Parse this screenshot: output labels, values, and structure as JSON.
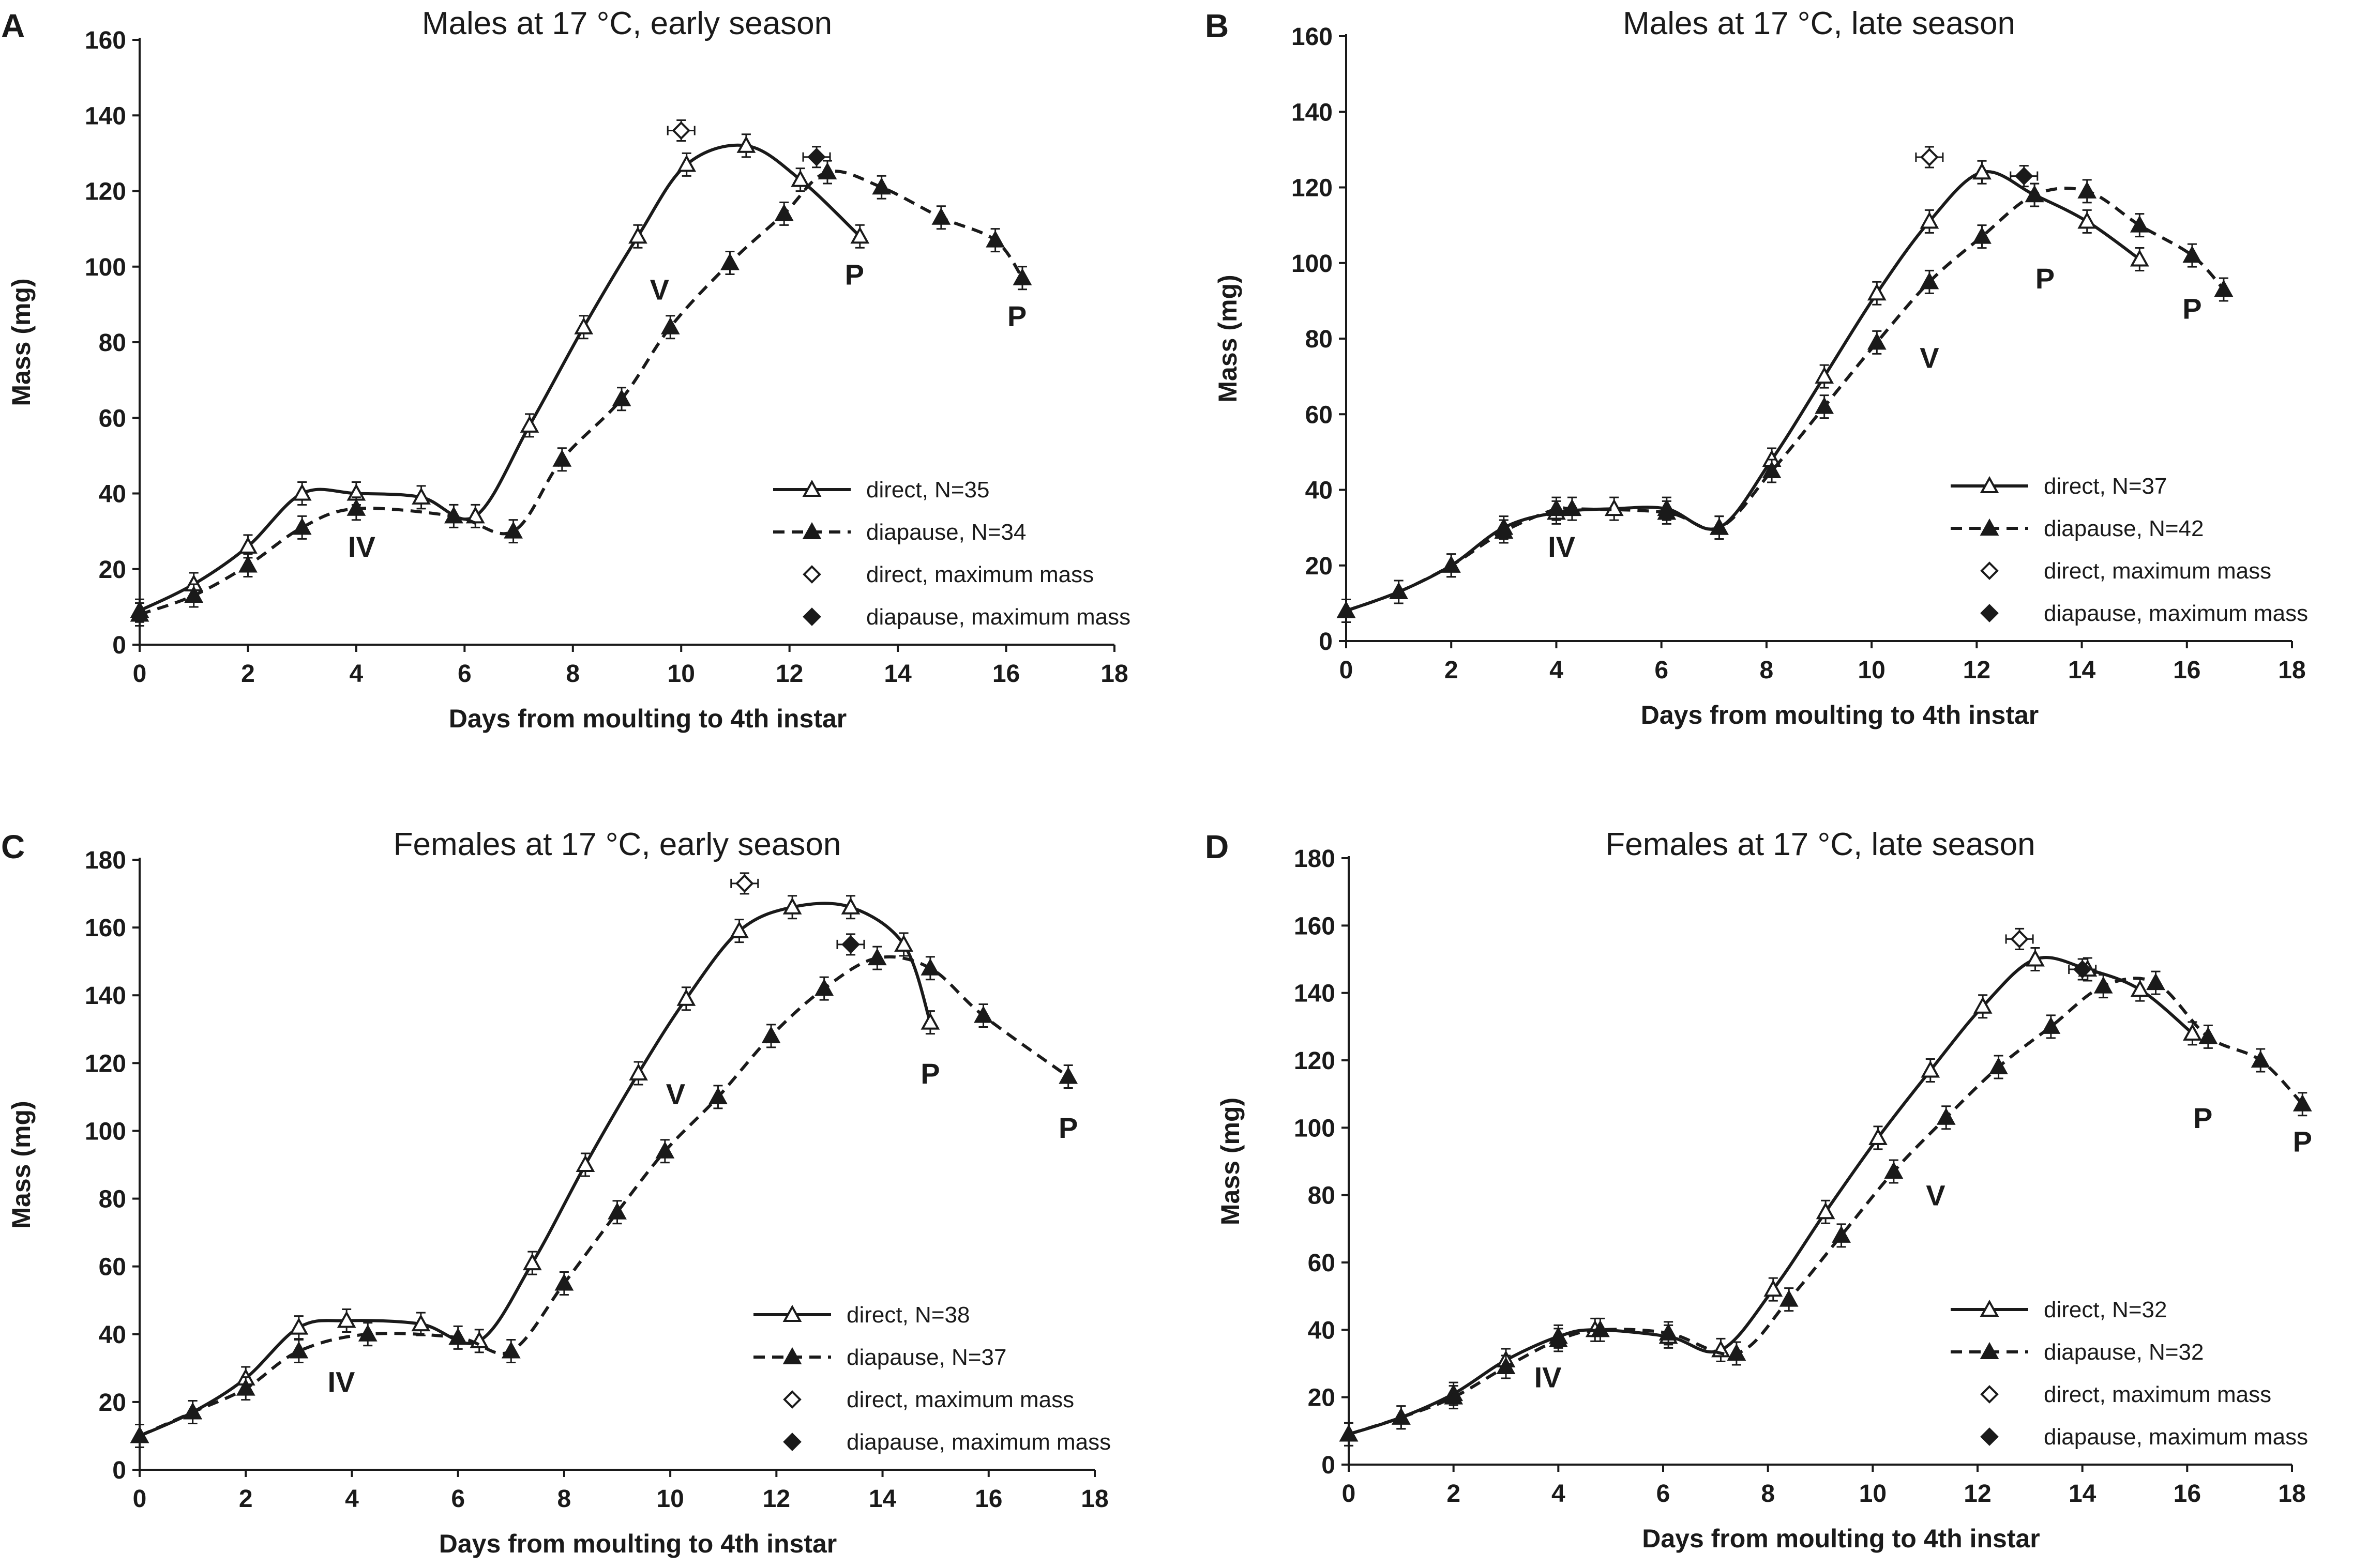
{
  "figure": {
    "description_panels": 4
  },
  "legend_labels": {
    "direct_max": "direct, maximum mass",
    "diapause_max": "diapause, maximum mass"
  },
  "chart_data": [
    {
      "type": "line",
      "panel": "A",
      "title": "Males at 17 °C, early season",
      "xlabel": "Days from moulting to 4th instar",
      "ylabel": "Mass (mg)",
      "xlim": [
        0,
        18
      ],
      "ylim": [
        0,
        160
      ],
      "xticks": [
        0,
        2,
        4,
        6,
        8,
        10,
        12,
        14,
        16,
        18
      ],
      "yticks": [
        0,
        20,
        40,
        60,
        80,
        100,
        120,
        140,
        160
      ],
      "series": [
        {
          "name": "direct, N=35",
          "style": "solid",
          "marker": "open-triangle",
          "x": [
            0,
            1,
            2,
            3,
            4,
            5.2,
            6.2,
            7.2,
            8.2,
            9.2,
            10.1,
            11.2,
            12.2,
            13.3
          ],
          "y": [
            9,
            16,
            26,
            40,
            40,
            39,
            34,
            58,
            84,
            108,
            127,
            132,
            123,
            108
          ]
        },
        {
          "name": "diapause, N=34",
          "style": "dashed",
          "marker": "filled-triangle",
          "x": [
            0,
            1,
            2,
            3,
            4,
            5.8,
            6.9,
            7.8,
            8.9,
            9.8,
            10.9,
            11.9,
            12.7,
            13.7,
            14.8,
            15.8,
            16.3
          ],
          "y": [
            8,
            13,
            21,
            31,
            36,
            34,
            30,
            49,
            65,
            84,
            101,
            114,
            125,
            121,
            113,
            107,
            97
          ]
        }
      ],
      "maximum_mass": {
        "direct": {
          "x": 10.0,
          "y": 136
        },
        "diapause": {
          "x": 12.5,
          "y": 129
        }
      },
      "annotations": [
        {
          "text": "IV",
          "x": 4.1,
          "y": 26
        },
        {
          "text": "V",
          "x": 9.6,
          "y": 94
        },
        {
          "text": "P",
          "x": 13.2,
          "y": 98
        },
        {
          "text": "P",
          "x": 16.2,
          "y": 87
        }
      ]
    },
    {
      "type": "line",
      "panel": "B",
      "title": "Males at 17 °C, late season",
      "xlabel": "Days from moulting to 4th instar",
      "ylabel": "Mass (mg)",
      "xlim": [
        0,
        18
      ],
      "ylim": [
        0,
        160
      ],
      "xticks": [
        0,
        2,
        4,
        6,
        8,
        10,
        12,
        14,
        16,
        18
      ],
      "yticks": [
        0,
        20,
        40,
        60,
        80,
        100,
        120,
        140,
        160
      ],
      "series": [
        {
          "name": "direct, N=37",
          "style": "solid",
          "marker": "open-triangle",
          "x": [
            0,
            1,
            2,
            3,
            4,
            5.1,
            6.1,
            7.1,
            8.1,
            9.1,
            10.1,
            11.1,
            12.1,
            13.1,
            14.1,
            15.1
          ],
          "y": [
            8,
            13,
            20,
            30,
            34,
            35,
            35,
            30,
            48,
            70,
            92,
            111,
            124,
            118,
            111,
            101
          ]
        },
        {
          "name": "diapause, N=42",
          "style": "dashed",
          "marker": "filled-triangle",
          "x": [
            0,
            1,
            2,
            3,
            4,
            4.3,
            6.1,
            7.1,
            8.1,
            9.1,
            10.1,
            11.1,
            12.1,
            13.1,
            14.1,
            15.1,
            16.1,
            16.7
          ],
          "y": [
            8,
            13,
            20,
            29,
            35,
            35,
            34,
            30,
            45,
            62,
            79,
            95,
            107,
            118,
            119,
            110,
            102,
            93
          ]
        }
      ],
      "maximum_mass": {
        "direct": {
          "x": 11.1,
          "y": 128
        },
        "diapause": {
          "x": 12.9,
          "y": 123
        }
      },
      "annotations": [
        {
          "text": "IV",
          "x": 4.1,
          "y": 25
        },
        {
          "text": "V",
          "x": 11.1,
          "y": 75
        },
        {
          "text": "P",
          "x": 13.3,
          "y": 96
        },
        {
          "text": "P",
          "x": 16.1,
          "y": 88
        }
      ]
    },
    {
      "type": "line",
      "panel": "C",
      "title": "Females at 17 °C, early season",
      "xlabel": "Days from moulting to 4th instar",
      "ylabel": "Mass (mg)",
      "xlim": [
        0,
        18
      ],
      "ylim": [
        0,
        180
      ],
      "xticks": [
        0,
        2,
        4,
        6,
        8,
        10,
        12,
        14,
        16,
        18
      ],
      "yticks": [
        0,
        20,
        40,
        60,
        80,
        100,
        120,
        140,
        160,
        180
      ],
      "series": [
        {
          "name": "direct, N=38",
          "style": "solid",
          "marker": "open-triangle",
          "x": [
            0,
            1,
            2,
            3,
            3.9,
            5.3,
            6.4,
            7.4,
            8.4,
            9.4,
            10.3,
            11.3,
            12.3,
            13.4,
            14.4,
            14.9
          ],
          "y": [
            10,
            17,
            27,
            42,
            44,
            43,
            38,
            61,
            90,
            117,
            139,
            159,
            166,
            166,
            155,
            132
          ]
        },
        {
          "name": "diapause, N=37",
          "style": "dashed",
          "marker": "filled-triangle",
          "x": [
            0,
            1,
            2,
            3,
            4.3,
            6.0,
            7.0,
            8.0,
            9.0,
            9.9,
            10.9,
            11.9,
            12.9,
            13.9,
            14.9,
            15.9,
            17.5
          ],
          "y": [
            10,
            17,
            24,
            35,
            40,
            39,
            35,
            55,
            76,
            94,
            110,
            128,
            142,
            151,
            148,
            134,
            116
          ]
        }
      ],
      "maximum_mass": {
        "direct": {
          "x": 11.4,
          "y": 173
        },
        "diapause": {
          "x": 13.4,
          "y": 155
        }
      },
      "annotations": [
        {
          "text": "IV",
          "x": 3.8,
          "y": 26
        },
        {
          "text": "V",
          "x": 10.1,
          "y": 111
        },
        {
          "text": "P",
          "x": 14.9,
          "y": 117
        },
        {
          "text": "P",
          "x": 17.5,
          "y": 101
        }
      ]
    },
    {
      "type": "line",
      "panel": "D",
      "title": "Females at 17 °C, late season",
      "xlabel": "Days from moulting to 4th instar",
      "ylabel": "Mass (mg)",
      "xlim": [
        0,
        18
      ],
      "ylim": [
        0,
        180
      ],
      "xticks": [
        0,
        2,
        4,
        6,
        8,
        10,
        12,
        14,
        16,
        18
      ],
      "yticks": [
        0,
        20,
        40,
        60,
        80,
        100,
        120,
        140,
        160,
        180
      ],
      "series": [
        {
          "name": "direct, N=32",
          "style": "solid",
          "marker": "open-triangle",
          "x": [
            0,
            1,
            2,
            3,
            4,
            4.7,
            6.1,
            7.1,
            8.1,
            9.1,
            10.1,
            11.1,
            12.1,
            13.1,
            14.1,
            15.1,
            16.1
          ],
          "y": [
            9,
            14,
            21,
            31,
            38,
            40,
            38,
            34,
            52,
            75,
            97,
            117,
            136,
            150,
            147,
            141,
            128
          ]
        },
        {
          "name": "diapause, N=32",
          "style": "dashed",
          "marker": "filled-triangle",
          "x": [
            0,
            1,
            2,
            3,
            4,
            4.8,
            6.1,
            7.4,
            8.4,
            9.4,
            10.4,
            11.4,
            12.4,
            13.4,
            14.4,
            15.4,
            16.4,
            17.4,
            18.2
          ],
          "y": [
            9,
            14,
            20,
            29,
            37,
            40,
            39,
            33,
            49,
            68,
            87,
            103,
            118,
            130,
            142,
            143,
            127,
            120,
            107
          ]
        }
      ],
      "maximum_mass": {
        "direct": {
          "x": 12.8,
          "y": 156
        },
        "diapause": {
          "x": 14.0,
          "y": 147
        }
      },
      "annotations": [
        {
          "text": "IV",
          "x": 3.8,
          "y": 26
        },
        {
          "text": "V",
          "x": 11.2,
          "y": 80
        },
        {
          "text": "P",
          "x": 16.3,
          "y": 103
        },
        {
          "text": "P",
          "x": 18.2,
          "y": 96
        }
      ]
    }
  ]
}
